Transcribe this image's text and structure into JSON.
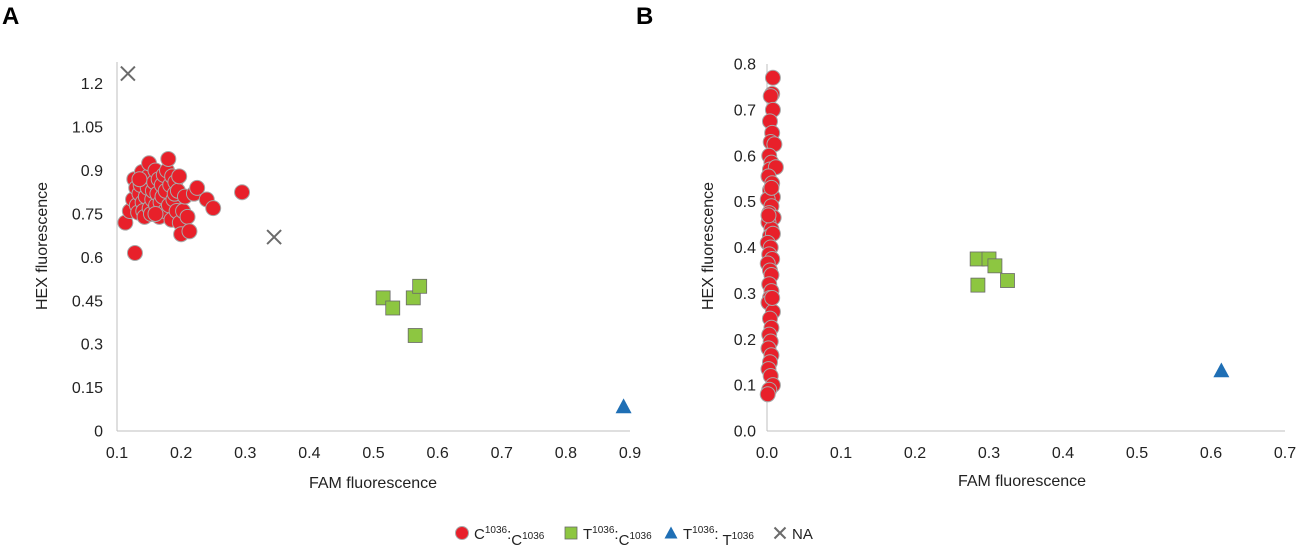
{
  "colors": {
    "cc": "#e8202a",
    "cc_stroke": "#a8a8a8",
    "tc": "#8dc641",
    "tc_stroke": "#6a6a6a",
    "tt": "#1f6fb5",
    "na": "#6b6b6b"
  },
  "legend": [
    {
      "key": "cc",
      "marker": "circle",
      "a": "C",
      "a_sup": "1036",
      "sep": ":",
      "b": "C",
      "b_sup": "1036"
    },
    {
      "key": "tc",
      "marker": "square",
      "a": "T",
      "a_sup": "1036",
      "sep": ":",
      "b": "C",
      "b_sup": "1036"
    },
    {
      "key": "tt",
      "marker": "triangle",
      "a": "T",
      "a_sup": "1036",
      "sep": ": ",
      "b": "T",
      "b_sup": "1036"
    },
    {
      "key": "na",
      "marker": "x",
      "label": "NA"
    }
  ],
  "chart_data": [
    {
      "panel_label": "A",
      "type": "scatter",
      "xlabel": "FAM fluorescence",
      "ylabel": "HEX fluorescence",
      "xlim": [
        0.1,
        0.9
      ],
      "ylim": [
        0,
        1.275
      ],
      "xticks": [
        0.1,
        0.2,
        0.3,
        0.4,
        0.5,
        0.6,
        0.7,
        0.8,
        0.9
      ],
      "xtick_labels": [
        "0.1",
        "0.2",
        "0.3",
        "0.4",
        "0.5",
        "0.6",
        "0.7",
        "0.8",
        "0.9"
      ],
      "yticks": [
        0,
        0.15,
        0.3,
        0.45,
        0.6,
        0.75,
        0.9,
        1.05,
        1.2
      ],
      "ytick_labels": [
        "0",
        "0.15",
        "0.3",
        "0.45",
        "0.6",
        "0.75",
        "0.9",
        "1.05",
        "1.2"
      ],
      "series": [
        {
          "key": "cc",
          "marker": "circle",
          "points": [
            [
              0.113,
              0.72
            ],
            [
              0.12,
              0.76
            ],
            [
              0.125,
              0.8
            ],
            [
              0.127,
              0.87
            ],
            [
              0.13,
              0.84
            ],
            [
              0.131,
              0.78
            ],
            [
              0.133,
              0.755
            ],
            [
              0.135,
              0.82
            ],
            [
              0.137,
              0.85
            ],
            [
              0.139,
              0.895
            ],
            [
              0.14,
              0.79
            ],
            [
              0.141,
              0.76
            ],
            [
              0.143,
              0.74
            ],
            [
              0.145,
              0.81
            ],
            [
              0.146,
              0.86
            ],
            [
              0.148,
              0.84
            ],
            [
              0.149,
              0.88
            ],
            [
              0.15,
              0.925
            ],
            [
              0.151,
              0.77
            ],
            [
              0.153,
              0.75
            ],
            [
              0.155,
              0.8
            ],
            [
              0.156,
              0.83
            ],
            [
              0.158,
              0.86
            ],
            [
              0.16,
              0.9
            ],
            [
              0.161,
              0.78
            ],
            [
              0.163,
              0.82
            ],
            [
              0.165,
              0.87
            ],
            [
              0.166,
              0.74
            ],
            [
              0.168,
              0.79
            ],
            [
              0.17,
              0.85
            ],
            [
              0.171,
              0.81
            ],
            [
              0.173,
              0.885
            ],
            [
              0.175,
              0.76
            ],
            [
              0.176,
              0.83
            ],
            [
              0.178,
              0.9
            ],
            [
              0.18,
              0.94
            ],
            [
              0.181,
              0.78
            ],
            [
              0.183,
              0.85
            ],
            [
              0.185,
              0.73
            ],
            [
              0.186,
              0.88
            ],
            [
              0.188,
              0.8
            ],
            [
              0.19,
              0.82
            ],
            [
              0.191,
              0.86
            ],
            [
              0.193,
              0.76
            ],
            [
              0.195,
              0.83
            ],
            [
              0.197,
              0.88
            ],
            [
              0.198,
              0.72
            ],
            [
              0.2,
              0.68
            ],
            [
              0.203,
              0.76
            ],
            [
              0.206,
              0.81
            ],
            [
              0.21,
              0.74
            ],
            [
              0.213,
              0.69
            ],
            [
              0.22,
              0.82
            ],
            [
              0.225,
              0.84
            ],
            [
              0.24,
              0.8
            ],
            [
              0.25,
              0.77
            ],
            [
              0.295,
              0.825
            ],
            [
              0.128,
              0.615
            ],
            [
              0.135,
              0.87
            ],
            [
              0.16,
              0.75
            ]
          ]
        },
        {
          "key": "tc",
          "marker": "square",
          "points": [
            [
              0.515,
              0.46
            ],
            [
              0.53,
              0.425
            ],
            [
              0.562,
              0.46
            ],
            [
              0.572,
              0.5
            ],
            [
              0.565,
              0.33
            ]
          ]
        },
        {
          "key": "tt",
          "marker": "triangle",
          "points": [
            [
              0.89,
              0.085
            ]
          ]
        },
        {
          "key": "na",
          "marker": "x",
          "points": [
            [
              0.117,
              1.235
            ],
            [
              0.345,
              0.67
            ]
          ]
        }
      ]
    },
    {
      "panel_label": "B",
      "type": "scatter",
      "xlabel": "FAM fluorescence",
      "ylabel": "HEX fluorescence",
      "xlim": [
        0,
        0.7
      ],
      "ylim": [
        0,
        0.8
      ],
      "xticks": [
        0,
        0.1,
        0.2,
        0.3,
        0.4,
        0.5,
        0.6,
        0.7
      ],
      "xtick_labels": [
        "0.0",
        "0.1",
        "0.2",
        "0.3",
        "0.4",
        "0.5",
        "0.6",
        "0.7"
      ],
      "yticks": [
        0,
        0.1,
        0.2,
        0.3,
        0.4,
        0.5,
        0.6,
        0.7,
        0.8
      ],
      "ytick_labels": [
        "0.0",
        "0.1",
        "0.2",
        "0.3",
        "0.4",
        "0.5",
        "0.6",
        "0.7",
        "0.8"
      ],
      "series": [
        {
          "key": "cc",
          "marker": "circle",
          "points": [
            [
              0.008,
              0.77
            ],
            [
              0.007,
              0.735
            ],
            [
              0.005,
              0.73
            ],
            [
              0.008,
              0.7
            ],
            [
              0.004,
              0.675
            ],
            [
              0.007,
              0.65
            ],
            [
              0.005,
              0.63
            ],
            [
              0.01,
              0.625
            ],
            [
              0.003,
              0.6
            ],
            [
              0.006,
              0.585
            ],
            [
              0.004,
              0.57
            ],
            [
              0.012,
              0.575
            ],
            [
              0.002,
              0.555
            ],
            [
              0.007,
              0.54
            ],
            [
              0.004,
              0.525
            ],
            [
              0.008,
              0.51
            ],
            [
              0.001,
              0.505
            ],
            [
              0.006,
              0.49
            ],
            [
              0.003,
              0.475
            ],
            [
              0.009,
              0.465
            ],
            [
              0.002,
              0.455
            ],
            [
              0.006,
              0.44
            ],
            [
              0.004,
              0.425
            ],
            [
              0.008,
              0.43
            ],
            [
              0.001,
              0.41
            ],
            [
              0.005,
              0.4
            ],
            [
              0.003,
              0.385
            ],
            [
              0.007,
              0.375
            ],
            [
              0.001,
              0.365
            ],
            [
              0.004,
              0.35
            ],
            [
              0.006,
              0.34
            ],
            [
              0.003,
              0.32
            ],
            [
              0.006,
              0.305
            ],
            [
              0.004,
              0.29
            ],
            [
              0.002,
              0.28
            ],
            [
              0.008,
              0.26
            ],
            [
              0.004,
              0.245
            ],
            [
              0.006,
              0.225
            ],
            [
              0.003,
              0.21
            ],
            [
              0.005,
              0.195
            ],
            [
              0.002,
              0.18
            ],
            [
              0.006,
              0.165
            ],
            [
              0.004,
              0.15
            ],
            [
              0.002,
              0.135
            ],
            [
              0.005,
              0.12
            ],
            [
              0.008,
              0.1
            ],
            [
              0.003,
              0.09
            ],
            [
              0.001,
              0.08
            ],
            [
              0.006,
              0.53
            ],
            [
              0.002,
              0.47
            ],
            [
              0.007,
              0.29
            ]
          ]
        },
        {
          "key": "tc",
          "marker": "square",
          "points": [
            [
              0.284,
              0.375
            ],
            [
              0.3,
              0.375
            ],
            [
              0.308,
              0.36
            ],
            [
              0.325,
              0.328
            ],
            [
              0.285,
              0.318
            ]
          ]
        },
        {
          "key": "tt",
          "marker": "triangle",
          "points": [
            [
              0.614,
              0.132
            ]
          ]
        }
      ]
    }
  ]
}
